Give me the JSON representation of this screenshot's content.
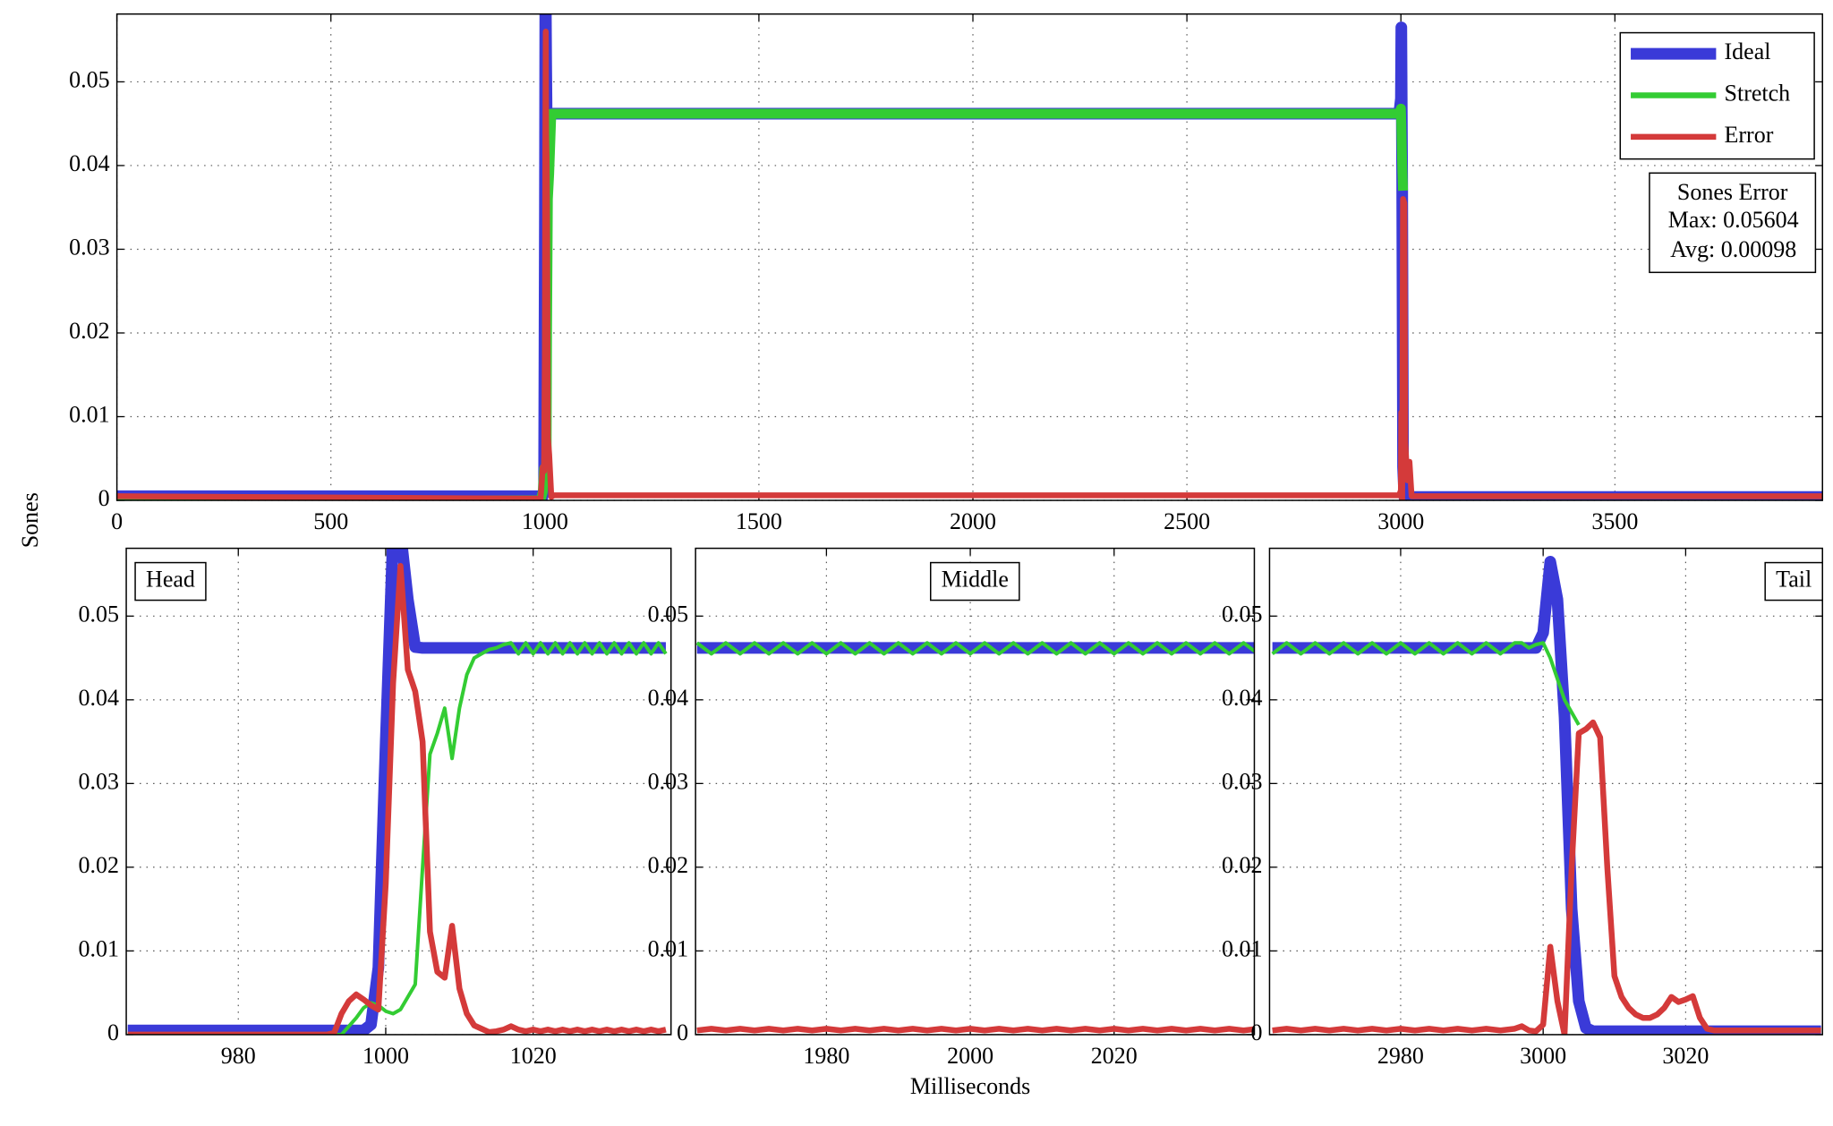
{
  "chart_data": [
    {
      "type": "line",
      "ylabel": "Sones",
      "legend": "upper right",
      "annotation": {
        "title": "Sones Error",
        "lines": [
          "Max: 0.05604",
          "Avg: 0.00098"
        ]
      },
      "x": [
        0,
        990,
        995,
        998,
        1000,
        1001,
        1002,
        1003,
        1004,
        1005,
        1007,
        1010,
        1015,
        1020,
        2990,
        2996,
        3000,
        3001,
        3003,
        3005,
        3008,
        3010,
        3015,
        3020,
        3025,
        3030,
        3985
      ],
      "xlim": [
        0,
        3985
      ],
      "xticks": [
        0,
        500,
        1000,
        1500,
        2000,
        2500,
        3000,
        3500
      ],
      "ylim": [
        0,
        0.0581
      ],
      "yticks": [
        0,
        0.01,
        0.02,
        0.03,
        0.04,
        0.05
      ],
      "grid": true,
      "series": [
        {
          "name": "Ideal",
          "color": "#3a3ad8",
          "values": [
            0.0005,
            0.0005,
            0.0005,
            0.0012,
            0.035,
            0.06,
            0.06,
            0.052,
            0.0463,
            0.0462,
            0.0462,
            0.0462,
            0.0462,
            0.0462,
            0.0462,
            0.0462,
            0.048,
            0.0565,
            0.038,
            0.004,
            0.0004,
            0.0004,
            0.0004,
            0.0004,
            0.0004,
            0.0004,
            0.0004
          ]
        },
        {
          "name": "Stretch",
          "color": "#33cc33",
          "values": [
            0,
            0,
            0.001,
            0.0038,
            0.0028,
            0.0025,
            0.003,
            0.0045,
            0.006,
            0.02,
            0.036,
            0.039,
            0.0462,
            0.0462,
            0.0462,
            0.0462,
            0.0468,
            0.045,
            0.04,
            0.037,
            null,
            null,
            null,
            null,
            null,
            null,
            null
          ]
        },
        {
          "name": "Error",
          "color": "#d43a3a",
          "values": [
            0.0005,
            0.0002,
            0.004,
            0.0035,
            0.018,
            0.042,
            0.056,
            0.0436,
            0.041,
            0.035,
            0.0075,
            0.0055,
            0.0004,
            0.0006,
            0.0006,
            0.0006,
            0.0012,
            0.0105,
            0,
            0.036,
            0.0355,
            0.007,
            0.0024,
            0.0046,
            0.0005,
            0.0005,
            0.0005
          ]
        }
      ]
    },
    {
      "type": "line",
      "title": "Head",
      "x": [
        965,
        990,
        991,
        992,
        993,
        994,
        995,
        996,
        997,
        998,
        999,
        1000,
        1001,
        1002,
        1003,
        1004,
        1005,
        1006,
        1007,
        1008,
        1009,
        1010,
        1011,
        1012,
        1013,
        1014,
        1015,
        1016,
        1017,
        1018,
        1019,
        1020,
        1021,
        1022,
        1023,
        1024,
        1025,
        1026,
        1027,
        1028,
        1029,
        1030,
        1031,
        1032,
        1033,
        1034,
        1035,
        1036,
        1037,
        1038
      ],
      "xlim": [
        964.8,
        1038.7
      ],
      "xticks": [
        980,
        1000,
        1020
      ],
      "ylim": [
        0,
        0.0581
      ],
      "yticks": [
        0,
        0.01,
        0.02,
        0.03,
        0.04,
        0.05
      ],
      "grid": true,
      "series": [
        {
          "name": "Ideal",
          "color": "#3a3ad8",
          "values": [
            0.0005,
            0.0005,
            0.0005,
            0.0005,
            0.0005,
            0.0005,
            0.0005,
            0.0005,
            0.0005,
            0.0012,
            0.008,
            0.035,
            0.06,
            0.06,
            0.052,
            0.0463,
            0.0462,
            0.0462,
            0.0462,
            0.0462,
            0.0462,
            0.0462,
            0.0462,
            0.0462,
            0.0462,
            0.0462,
            0.0462,
            0.0462,
            0.0462,
            0.0462,
            0.0462,
            0.0462,
            0.0462,
            0.0462,
            0.0462,
            0.0462,
            0.0462,
            0.0462,
            0.0462,
            0.0462,
            0.0462,
            0.0462,
            0.0462,
            0.0462,
            0.0462,
            0.0462,
            0.0462,
            0.0462,
            0.0462,
            0.0462
          ]
        },
        {
          "name": "Stretch",
          "color": "#33cc33",
          "values": [
            0,
            0,
            0,
            0,
            0,
            0,
            0.001,
            0.002,
            0.0032,
            0.0038,
            0.0035,
            0.0028,
            0.0025,
            0.003,
            0.0045,
            0.006,
            0.02,
            0.0335,
            0.036,
            0.039,
            0.033,
            0.039,
            0.043,
            0.045,
            0.0455,
            0.046,
            0.0462,
            0.0466,
            0.0468,
            0.0455,
            0.0468,
            0.0455,
            0.0468,
            0.0455,
            0.0468,
            0.0455,
            0.0468,
            0.0455,
            0.0468,
            0.0455,
            0.0468,
            0.0455,
            0.0468,
            0.0455,
            0.0468,
            0.0455,
            0.0468,
            0.0455,
            0.0468,
            0.0455
          ]
        },
        {
          "name": "Error",
          "color": "#d43a3a",
          "values": [
            0,
            0,
            0,
            0,
            0.0002,
            0.0025,
            0.004,
            0.0048,
            0.0042,
            0.0035,
            0.003,
            0.018,
            0.042,
            0.056,
            0.0436,
            0.041,
            0.035,
            0.0123,
            0.0075,
            0.0068,
            0.013,
            0.0055,
            0.0025,
            0.0011,
            0.0007,
            0.0003,
            0.0004,
            0.0006,
            0.001,
            0.0006,
            0.0004,
            0.0006,
            0.0004,
            0.0006,
            0.0004,
            0.0006,
            0.0004,
            0.0006,
            0.0004,
            0.0006,
            0.0004,
            0.0006,
            0.0004,
            0.0006,
            0.0004,
            0.0006,
            0.0004,
            0.0006,
            0.0004,
            0.0006
          ]
        }
      ]
    },
    {
      "type": "line",
      "title": "Middle",
      "xlabel": "Milliseconds",
      "x": [
        1962,
        1964,
        1966,
        1968,
        1970,
        1972,
        1974,
        1976,
        1978,
        1980,
        1982,
        1984,
        1986,
        1988,
        1990,
        1992,
        1994,
        1996,
        1998,
        2000,
        2002,
        2004,
        2006,
        2008,
        2010,
        2012,
        2014,
        2016,
        2018,
        2020,
        2022,
        2024,
        2026,
        2028,
        2030,
        2032,
        2034,
        2036,
        2038,
        2040
      ],
      "xlim": [
        1961.8,
        2039.5
      ],
      "xticks": [
        1980,
        2000,
        2020
      ],
      "ylim": [
        0,
        0.0581
      ],
      "yticks": [
        0,
        0.01,
        0.02,
        0.03,
        0.04,
        0.05
      ],
      "grid": true,
      "series": [
        {
          "name": "Ideal",
          "color": "#3a3ad8",
          "values": [
            0.0462,
            0.0462,
            0.0462,
            0.0462,
            0.0462,
            0.0462,
            0.0462,
            0.0462,
            0.0462,
            0.0462,
            0.0462,
            0.0462,
            0.0462,
            0.0462,
            0.0462,
            0.0462,
            0.0462,
            0.0462,
            0.0462,
            0.0462,
            0.0462,
            0.0462,
            0.0462,
            0.0462,
            0.0462,
            0.0462,
            0.0462,
            0.0462,
            0.0462,
            0.0462,
            0.0462,
            0.0462,
            0.0462,
            0.0462,
            0.0462,
            0.0462,
            0.0462,
            0.0462,
            0.0462,
            0.0462
          ]
        },
        {
          "name": "Stretch",
          "color": "#33cc33",
          "values": [
            0.0468,
            0.0455,
            0.0468,
            0.0455,
            0.0468,
            0.0455,
            0.0468,
            0.0455,
            0.0468,
            0.0455,
            0.0468,
            0.0455,
            0.0468,
            0.0455,
            0.0468,
            0.0455,
            0.0468,
            0.0455,
            0.0468,
            0.0455,
            0.0468,
            0.0455,
            0.0468,
            0.0455,
            0.0468,
            0.0455,
            0.0468,
            0.0455,
            0.0468,
            0.0455,
            0.0468,
            0.0455,
            0.0468,
            0.0455,
            0.0468,
            0.0455,
            0.0468,
            0.0455,
            0.0468,
            0.0455
          ]
        },
        {
          "name": "Error",
          "color": "#d43a3a",
          "values": [
            0.0005,
            0.0007,
            0.0005,
            0.0007,
            0.0005,
            0.0007,
            0.0005,
            0.0007,
            0.0005,
            0.0007,
            0.0005,
            0.0007,
            0.0005,
            0.0007,
            0.0005,
            0.0007,
            0.0005,
            0.0007,
            0.0005,
            0.0007,
            0.0005,
            0.0007,
            0.0005,
            0.0007,
            0.0005,
            0.0007,
            0.0005,
            0.0007,
            0.0005,
            0.0007,
            0.0005,
            0.0007,
            0.0005,
            0.0007,
            0.0005,
            0.0007,
            0.0005,
            0.0007,
            0.0005,
            0.0007
          ]
        }
      ]
    },
    {
      "type": "line",
      "title": "Tail",
      "x": [
        2962,
        2964,
        2966,
        2968,
        2970,
        2972,
        2974,
        2976,
        2978,
        2980,
        2982,
        2984,
        2986,
        2988,
        2990,
        2992,
        2994,
        2996,
        2997,
        2998,
        2999,
        3000,
        3001,
        3002,
        3003,
        3004,
        3005,
        3006,
        3007,
        3008,
        3009,
        3010,
        3011,
        3012,
        3013,
        3014,
        3015,
        3016,
        3017,
        3018,
        3019,
        3020,
        3021,
        3022,
        3023,
        3024,
        3026,
        3030,
        3034,
        3039
      ],
      "xlim": [
        2961.6,
        3039.2
      ],
      "xticks": [
        2980,
        3000,
        3020
      ],
      "ylim": [
        0,
        0.0581
      ],
      "yticks": [
        0,
        0.01,
        0.02,
        0.03,
        0.04,
        0.05
      ],
      "grid": true,
      "series": [
        {
          "name": "Ideal",
          "color": "#3a3ad8",
          "values": [
            0.0462,
            0.0462,
            0.0462,
            0.0462,
            0.0462,
            0.0462,
            0.0462,
            0.0462,
            0.0462,
            0.0462,
            0.0462,
            0.0462,
            0.0462,
            0.0462,
            0.0462,
            0.0462,
            0.0462,
            0.0462,
            0.0462,
            0.0462,
            0.0462,
            0.048,
            0.0565,
            0.052,
            0.038,
            0.015,
            0.004,
            0.0008,
            0.0004,
            0.0004,
            0.0004,
            0.0004,
            0.0004,
            0.0004,
            0.0004,
            0.0004,
            0.0004,
            0.0004,
            0.0004,
            0.0004,
            0.0004,
            0.0004,
            0.0004,
            0.0004,
            0.0004,
            0.0004,
            0.0004,
            0.0004,
            0.0004,
            0.0004
          ]
        },
        {
          "name": "Stretch",
          "color": "#33cc33",
          "values": [
            0.0455,
            0.0468,
            0.0455,
            0.0468,
            0.0455,
            0.0468,
            0.0455,
            0.0468,
            0.0455,
            0.0468,
            0.0455,
            0.0468,
            0.0455,
            0.0468,
            0.0455,
            0.0468,
            0.0455,
            0.0468,
            0.0468,
            0.0462,
            0.0466,
            0.0468,
            0.045,
            0.0425,
            0.04,
            0.0385,
            0.037,
            null,
            null,
            null,
            null,
            null,
            null,
            null,
            null,
            null,
            null,
            null,
            null,
            null,
            null,
            null,
            null,
            null,
            null,
            null,
            null,
            null,
            null,
            null
          ]
        },
        {
          "name": "Error",
          "color": "#d43a3a",
          "values": [
            0.0005,
            0.0007,
            0.0005,
            0.0007,
            0.0005,
            0.0007,
            0.0005,
            0.0007,
            0.0005,
            0.0007,
            0.0005,
            0.0007,
            0.0005,
            0.0007,
            0.0005,
            0.0007,
            0.0005,
            0.0007,
            0.001,
            0.0005,
            0.0004,
            0.0012,
            0.0105,
            0.004,
            0,
            0.02,
            0.036,
            0.0365,
            0.0373,
            0.0355,
            0.02,
            0.007,
            0.0045,
            0.0032,
            0.0024,
            0.002,
            0.002,
            0.0024,
            0.0032,
            0.0045,
            0.0039,
            0.0042,
            0.0046,
            0.002,
            0.0007,
            0.0005,
            0.0005,
            0.0005,
            0.0005,
            0.0005
          ]
        }
      ]
    }
  ]
}
